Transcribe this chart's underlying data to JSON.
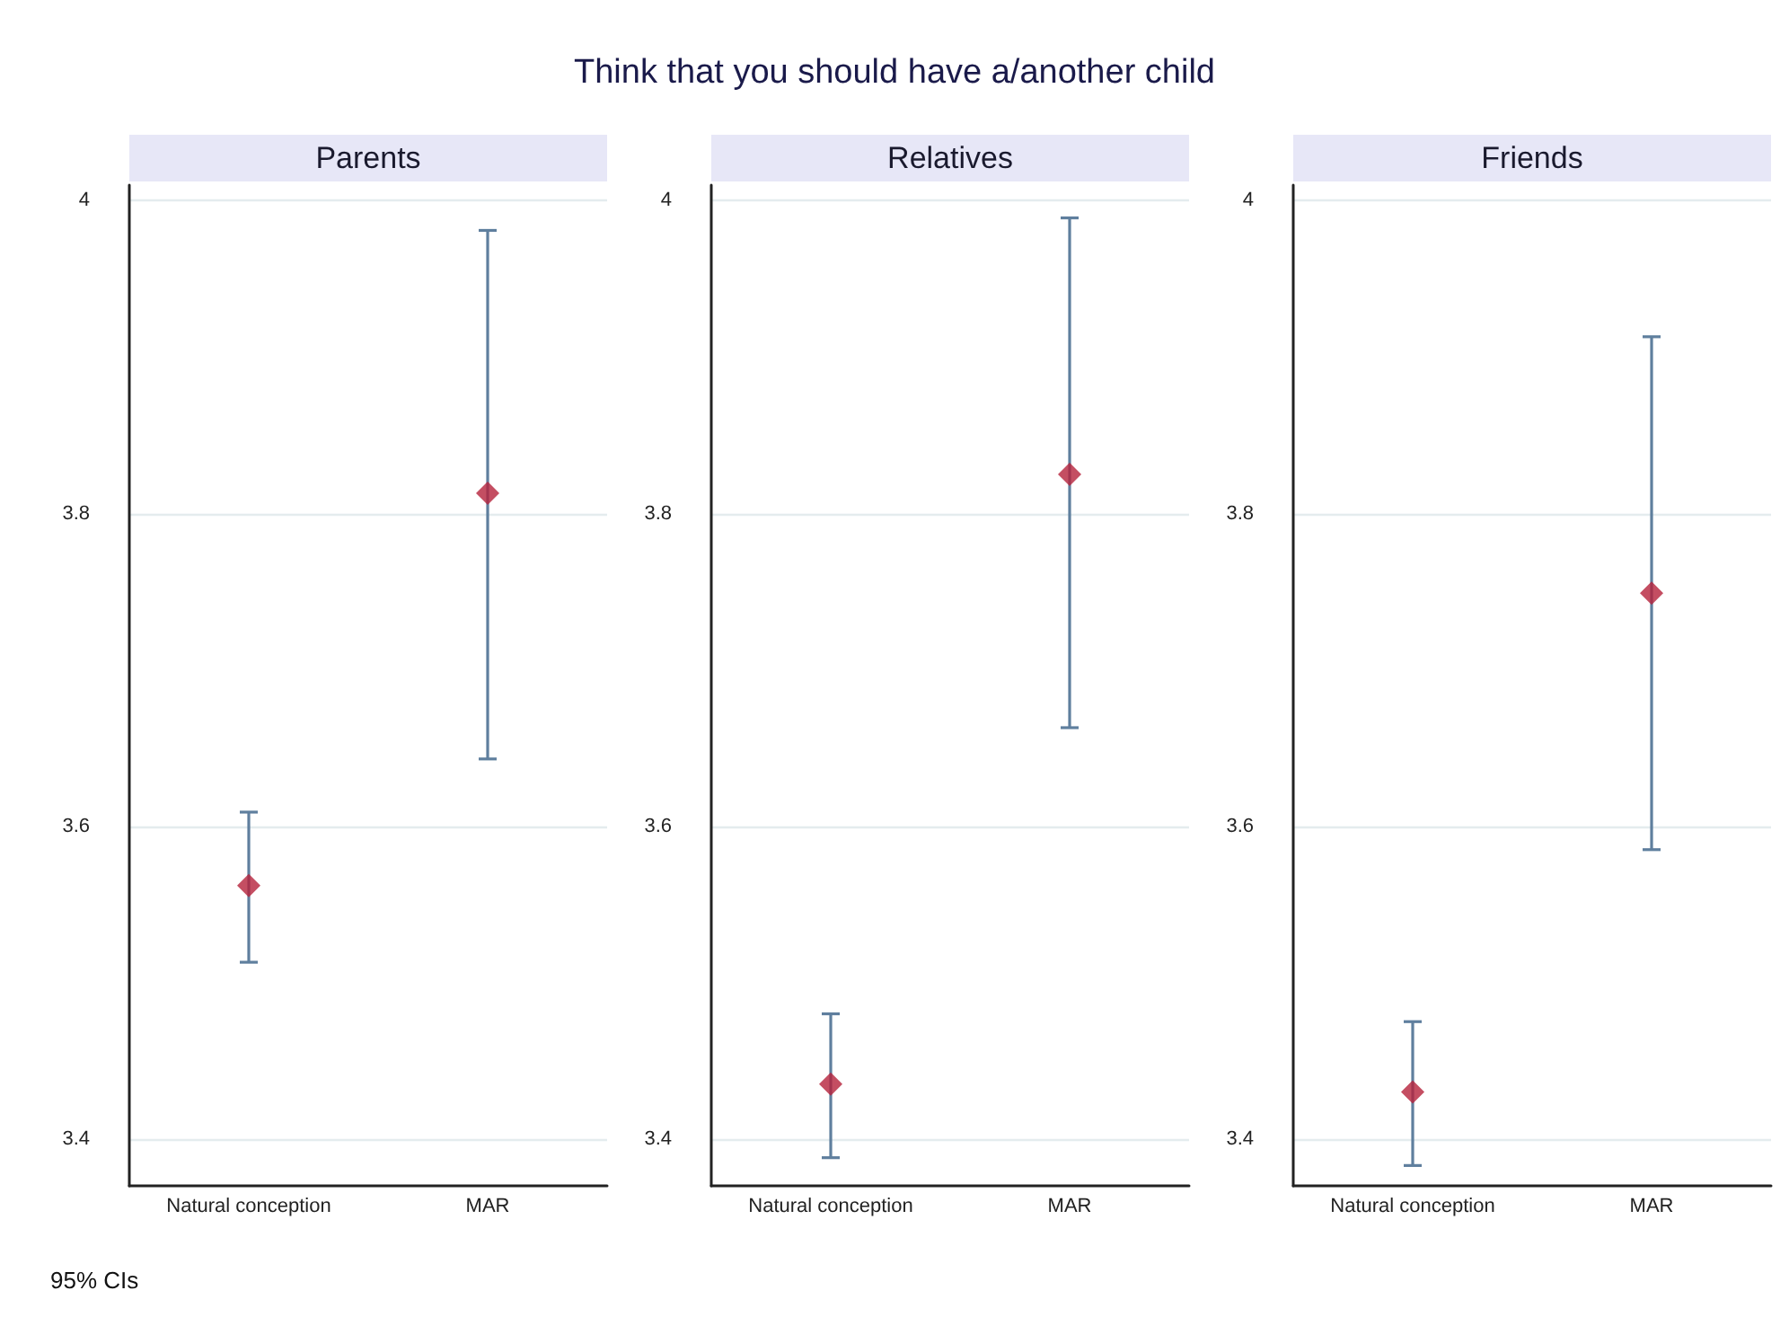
{
  "chart_data": [
    {
      "type": "scatter",
      "title": "Parents",
      "annotations": [
        "Think that you should have a/another child",
        "95% CIs"
      ],
      "categories": [
        "Natural conception",
        "MAR"
      ],
      "values": [
        3.562,
        3.813
      ],
      "errors": [
        [
          3.513,
          3.609
        ],
        [
          3.643,
          3.981
        ]
      ],
      "color": "#b5223b",
      "marker": "diamond",
      "ylim": [
        3.37,
        4.01
      ],
      "yticks": [
        3.4,
        3.6,
        3.8,
        4
      ],
      "grid": "y"
    },
    {
      "type": "scatter",
      "title": "Relatives",
      "categories": [
        "Natural conception",
        "MAR"
      ],
      "values": [
        3.435,
        3.825
      ],
      "errors": [
        [
          3.388,
          3.48
        ],
        [
          3.663,
          3.989
        ]
      ],
      "color": "#b5223b",
      "marker": "diamond",
      "ylim": [
        3.37,
        4.01
      ],
      "yticks": [
        3.4,
        3.6,
        3.8,
        4
      ],
      "grid": "y"
    },
    {
      "type": "scatter",
      "title": "Friends",
      "categories": [
        "Natural conception",
        "MAR"
      ],
      "values": [
        3.43,
        3.749
      ],
      "errors": [
        [
          3.383,
          3.475
        ],
        [
          3.585,
          3.913
        ]
      ],
      "color": "#b5223b",
      "marker": "diamond",
      "ylim": [
        3.37,
        4.01
      ],
      "yticks": [
        3.4,
        3.6,
        3.8,
        4
      ],
      "grid": "y"
    }
  ]
}
